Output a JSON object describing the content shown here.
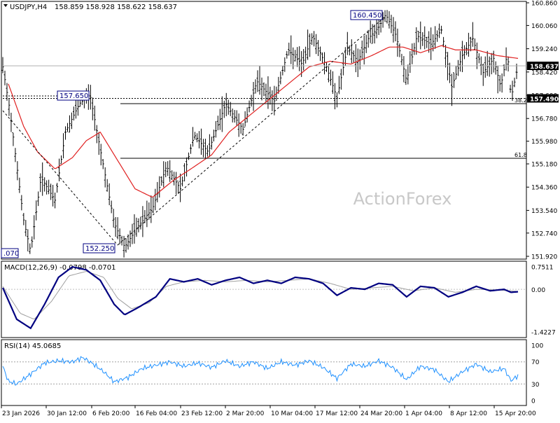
{
  "header": {
    "symbol_tf": "USDJPY,H4",
    "ohlc": "158.859 158.928 158.622 158.637"
  },
  "watermark": "ActionForex",
  "colors": {
    "bars": "#000000",
    "ma": "#e02020",
    "macd_main": "#000080",
    "macd_signal": "#a0a0a0",
    "rsi": "#1e90ff",
    "current_price_box": "#000000",
    "frame": "#000000"
  },
  "price_panel": {
    "ylim": [
      151.92,
      160.86
    ],
    "y_ticks": [
      "160.860",
      "160.060",
      "159.240",
      "158.420",
      "157.600",
      "156.780",
      "155.980",
      "155.180",
      "154.360",
      "153.540",
      "152.740",
      "151.920"
    ],
    "current_price": "158.637",
    "levels": {
      "fib_38_price": "157.490",
      "fib_38_label": "38.2",
      "fib_61_label": "61.8"
    },
    "annotations": [
      "160.450",
      "157.650",
      "152.250",
      ".070"
    ]
  },
  "macd_panel": {
    "title": "MACD(12,26,9) -0.0798 -0.0701",
    "y_ticks": [
      "0.7511",
      "0.00",
      "-1.4227"
    ],
    "current_label": "0.00"
  },
  "rsi_panel": {
    "title": "RSI(14) 45.0685",
    "y_ticks": [
      "100",
      "70",
      "30",
      "0"
    ]
  },
  "x_axis": {
    "labels": [
      "23 Jan 2026",
      "30 Jan 12:00",
      "6 Feb 20:00",
      "16 Feb 04:00",
      "23 Feb 12:00",
      "2 Mar 20:00",
      "10 Mar 04:00",
      "17 Mar 12:00",
      "24 Mar 20:00",
      "1 Apr 04:00",
      "8 Apr 12:00",
      "15 Apr 20:00"
    ]
  },
  "chart_data": {
    "type": "line",
    "title": "USDJPY,H4",
    "x": [
      "23 Jan 2026",
      "30 Jan 12:00",
      "6 Feb 20:00",
      "16 Feb 04:00",
      "23 Feb 12:00",
      "2 Mar 20:00",
      "10 Mar 04:00",
      "17 Mar 12:00",
      "24 Mar 20:00",
      "1 Apr 04:00",
      "8 Apr 12:00",
      "15 Apr 20:00"
    ],
    "anchors": [
      [
        0,
        158.6
      ],
      [
        10,
        157.1
      ],
      [
        30,
        153.2
      ],
      [
        40,
        152.1
      ],
      [
        55,
        154.7
      ],
      [
        75,
        153.9
      ],
      [
        90,
        156.3
      ],
      [
        110,
        157.3
      ],
      [
        125,
        157.65
      ],
      [
        140,
        155.7
      ],
      [
        160,
        153.1
      ],
      [
        175,
        152.25
      ],
      [
        195,
        153.0
      ],
      [
        215,
        153.6
      ],
      [
        235,
        155.1
      ],
      [
        255,
        154.3
      ],
      [
        275,
        156.2
      ],
      [
        295,
        155.6
      ],
      [
        320,
        157.3
      ],
      [
        345,
        156.4
      ],
      [
        365,
        158.1
      ],
      [
        390,
        157.4
      ],
      [
        410,
        159.2
      ],
      [
        430,
        158.7
      ],
      [
        445,
        159.7
      ],
      [
        465,
        158.6
      ],
      [
        480,
        157.5
      ],
      [
        495,
        159.3
      ],
      [
        510,
        158.8
      ],
      [
        525,
        159.6
      ],
      [
        540,
        160.0
      ],
      [
        550,
        160.45
      ],
      [
        565,
        159.7
      ],
      [
        580,
        158.1
      ],
      [
        595,
        159.7
      ],
      [
        615,
        159.4
      ],
      [
        630,
        159.9
      ],
      [
        645,
        157.9
      ],
      [
        660,
        159.0
      ],
      [
        675,
        159.6
      ],
      [
        690,
        158.4
      ],
      [
        705,
        158.9
      ],
      [
        715,
        157.9
      ],
      [
        725,
        159.1
      ],
      [
        730,
        157.49
      ],
      [
        740,
        158.64
      ]
    ],
    "ma_anchors": [
      [
        8,
        158.0
      ],
      [
        30,
        156.5
      ],
      [
        50,
        155.6
      ],
      [
        75,
        155.0
      ],
      [
        100,
        155.4
      ],
      [
        120,
        156.0
      ],
      [
        140,
        156.3
      ],
      [
        165,
        155.3
      ],
      [
        190,
        154.3
      ],
      [
        215,
        154.0
      ],
      [
        245,
        154.6
      ],
      [
        270,
        155.0
      ],
      [
        300,
        155.5
      ],
      [
        325,
        156.3
      ],
      [
        350,
        156.8
      ],
      [
        380,
        157.4
      ],
      [
        410,
        158.0
      ],
      [
        440,
        158.6
      ],
      [
        470,
        158.8
      ],
      [
        500,
        158.7
      ],
      [
        530,
        159.0
      ],
      [
        555,
        159.3
      ],
      [
        575,
        159.3
      ],
      [
        600,
        159.1
      ],
      [
        630,
        159.35
      ],
      [
        650,
        159.2
      ],
      [
        680,
        159.2
      ],
      [
        710,
        159.0
      ],
      [
        740,
        158.9
      ]
    ],
    "macd_main": [
      [
        0,
        0.05
      ],
      [
        20,
        -1.0
      ],
      [
        40,
        -1.3
      ],
      [
        60,
        -0.5
      ],
      [
        80,
        0.4
      ],
      [
        100,
        0.75
      ],
      [
        120,
        0.65
      ],
      [
        140,
        0.3
      ],
      [
        160,
        -0.5
      ],
      [
        175,
        -0.85
      ],
      [
        195,
        -0.6
      ],
      [
        220,
        -0.25
      ],
      [
        240,
        0.35
      ],
      [
        260,
        0.25
      ],
      [
        280,
        0.35
      ],
      [
        300,
        0.15
      ],
      [
        320,
        0.3
      ],
      [
        340,
        0.4
      ],
      [
        360,
        0.2
      ],
      [
        380,
        0.3
      ],
      [
        400,
        0.2
      ],
      [
        420,
        0.4
      ],
      [
        440,
        0.35
      ],
      [
        460,
        0.2
      ],
      [
        480,
        -0.2
      ],
      [
        500,
        0.05
      ],
      [
        520,
        0.0
      ],
      [
        540,
        0.2
      ],
      [
        560,
        0.15
      ],
      [
        580,
        -0.25
      ],
      [
        600,
        0.1
      ],
      [
        620,
        0.05
      ],
      [
        640,
        -0.25
      ],
      [
        660,
        -0.1
      ],
      [
        680,
        0.1
      ],
      [
        700,
        -0.05
      ],
      [
        720,
        0.0
      ],
      [
        730,
        -0.1
      ],
      [
        740,
        -0.08
      ]
    ],
    "macd_signal": [
      [
        0,
        0.1
      ],
      [
        25,
        -0.8
      ],
      [
        45,
        -1.0
      ],
      [
        70,
        -0.4
      ],
      [
        95,
        0.45
      ],
      [
        120,
        0.6
      ],
      [
        145,
        0.4
      ],
      [
        165,
        -0.3
      ],
      [
        185,
        -0.65
      ],
      [
        210,
        -0.45
      ],
      [
        235,
        0.1
      ],
      [
        260,
        0.25
      ],
      [
        290,
        0.3
      ],
      [
        320,
        0.25
      ],
      [
        350,
        0.3
      ],
      [
        380,
        0.25
      ],
      [
        410,
        0.3
      ],
      [
        440,
        0.35
      ],
      [
        470,
        0.2
      ],
      [
        500,
        0.0
      ],
      [
        530,
        0.05
      ],
      [
        560,
        0.1
      ],
      [
        590,
        -0.05
      ],
      [
        620,
        0.05
      ],
      [
        650,
        -0.1
      ],
      [
        680,
        0.0
      ],
      [
        710,
        -0.02
      ],
      [
        740,
        -0.07
      ]
    ],
    "rsi": [
      [
        0,
        62
      ],
      [
        8,
        35
      ],
      [
        20,
        30
      ],
      [
        40,
        48
      ],
      [
        60,
        68
      ],
      [
        80,
        72
      ],
      [
        100,
        70
      ],
      [
        115,
        78
      ],
      [
        130,
        66
      ],
      [
        145,
        52
      ],
      [
        160,
        34
      ],
      [
        180,
        42
      ],
      [
        200,
        58
      ],
      [
        220,
        64
      ],
      [
        240,
        70
      ],
      [
        260,
        62
      ],
      [
        280,
        68
      ],
      [
        300,
        60
      ],
      [
        320,
        72
      ],
      [
        340,
        62
      ],
      [
        360,
        70
      ],
      [
        380,
        58
      ],
      [
        400,
        70
      ],
      [
        420,
        64
      ],
      [
        440,
        72
      ],
      [
        460,
        60
      ],
      [
        480,
        40
      ],
      [
        500,
        66
      ],
      [
        520,
        62
      ],
      [
        540,
        72
      ],
      [
        560,
        60
      ],
      [
        580,
        38
      ],
      [
        600,
        62
      ],
      [
        620,
        56
      ],
      [
        640,
        34
      ],
      [
        660,
        52
      ],
      [
        680,
        66
      ],
      [
        700,
        52
      ],
      [
        720,
        58
      ],
      [
        730,
        36
      ],
      [
        740,
        45
      ]
    ],
    "x_range": [
      0,
      740
    ],
    "macd_ylim": [
      -1.4227,
      0.7511
    ],
    "rsi_ylim": [
      0,
      100
    ],
    "rsi_levels": [
      70,
      30
    ],
    "legend": "none",
    "grid": false
  }
}
